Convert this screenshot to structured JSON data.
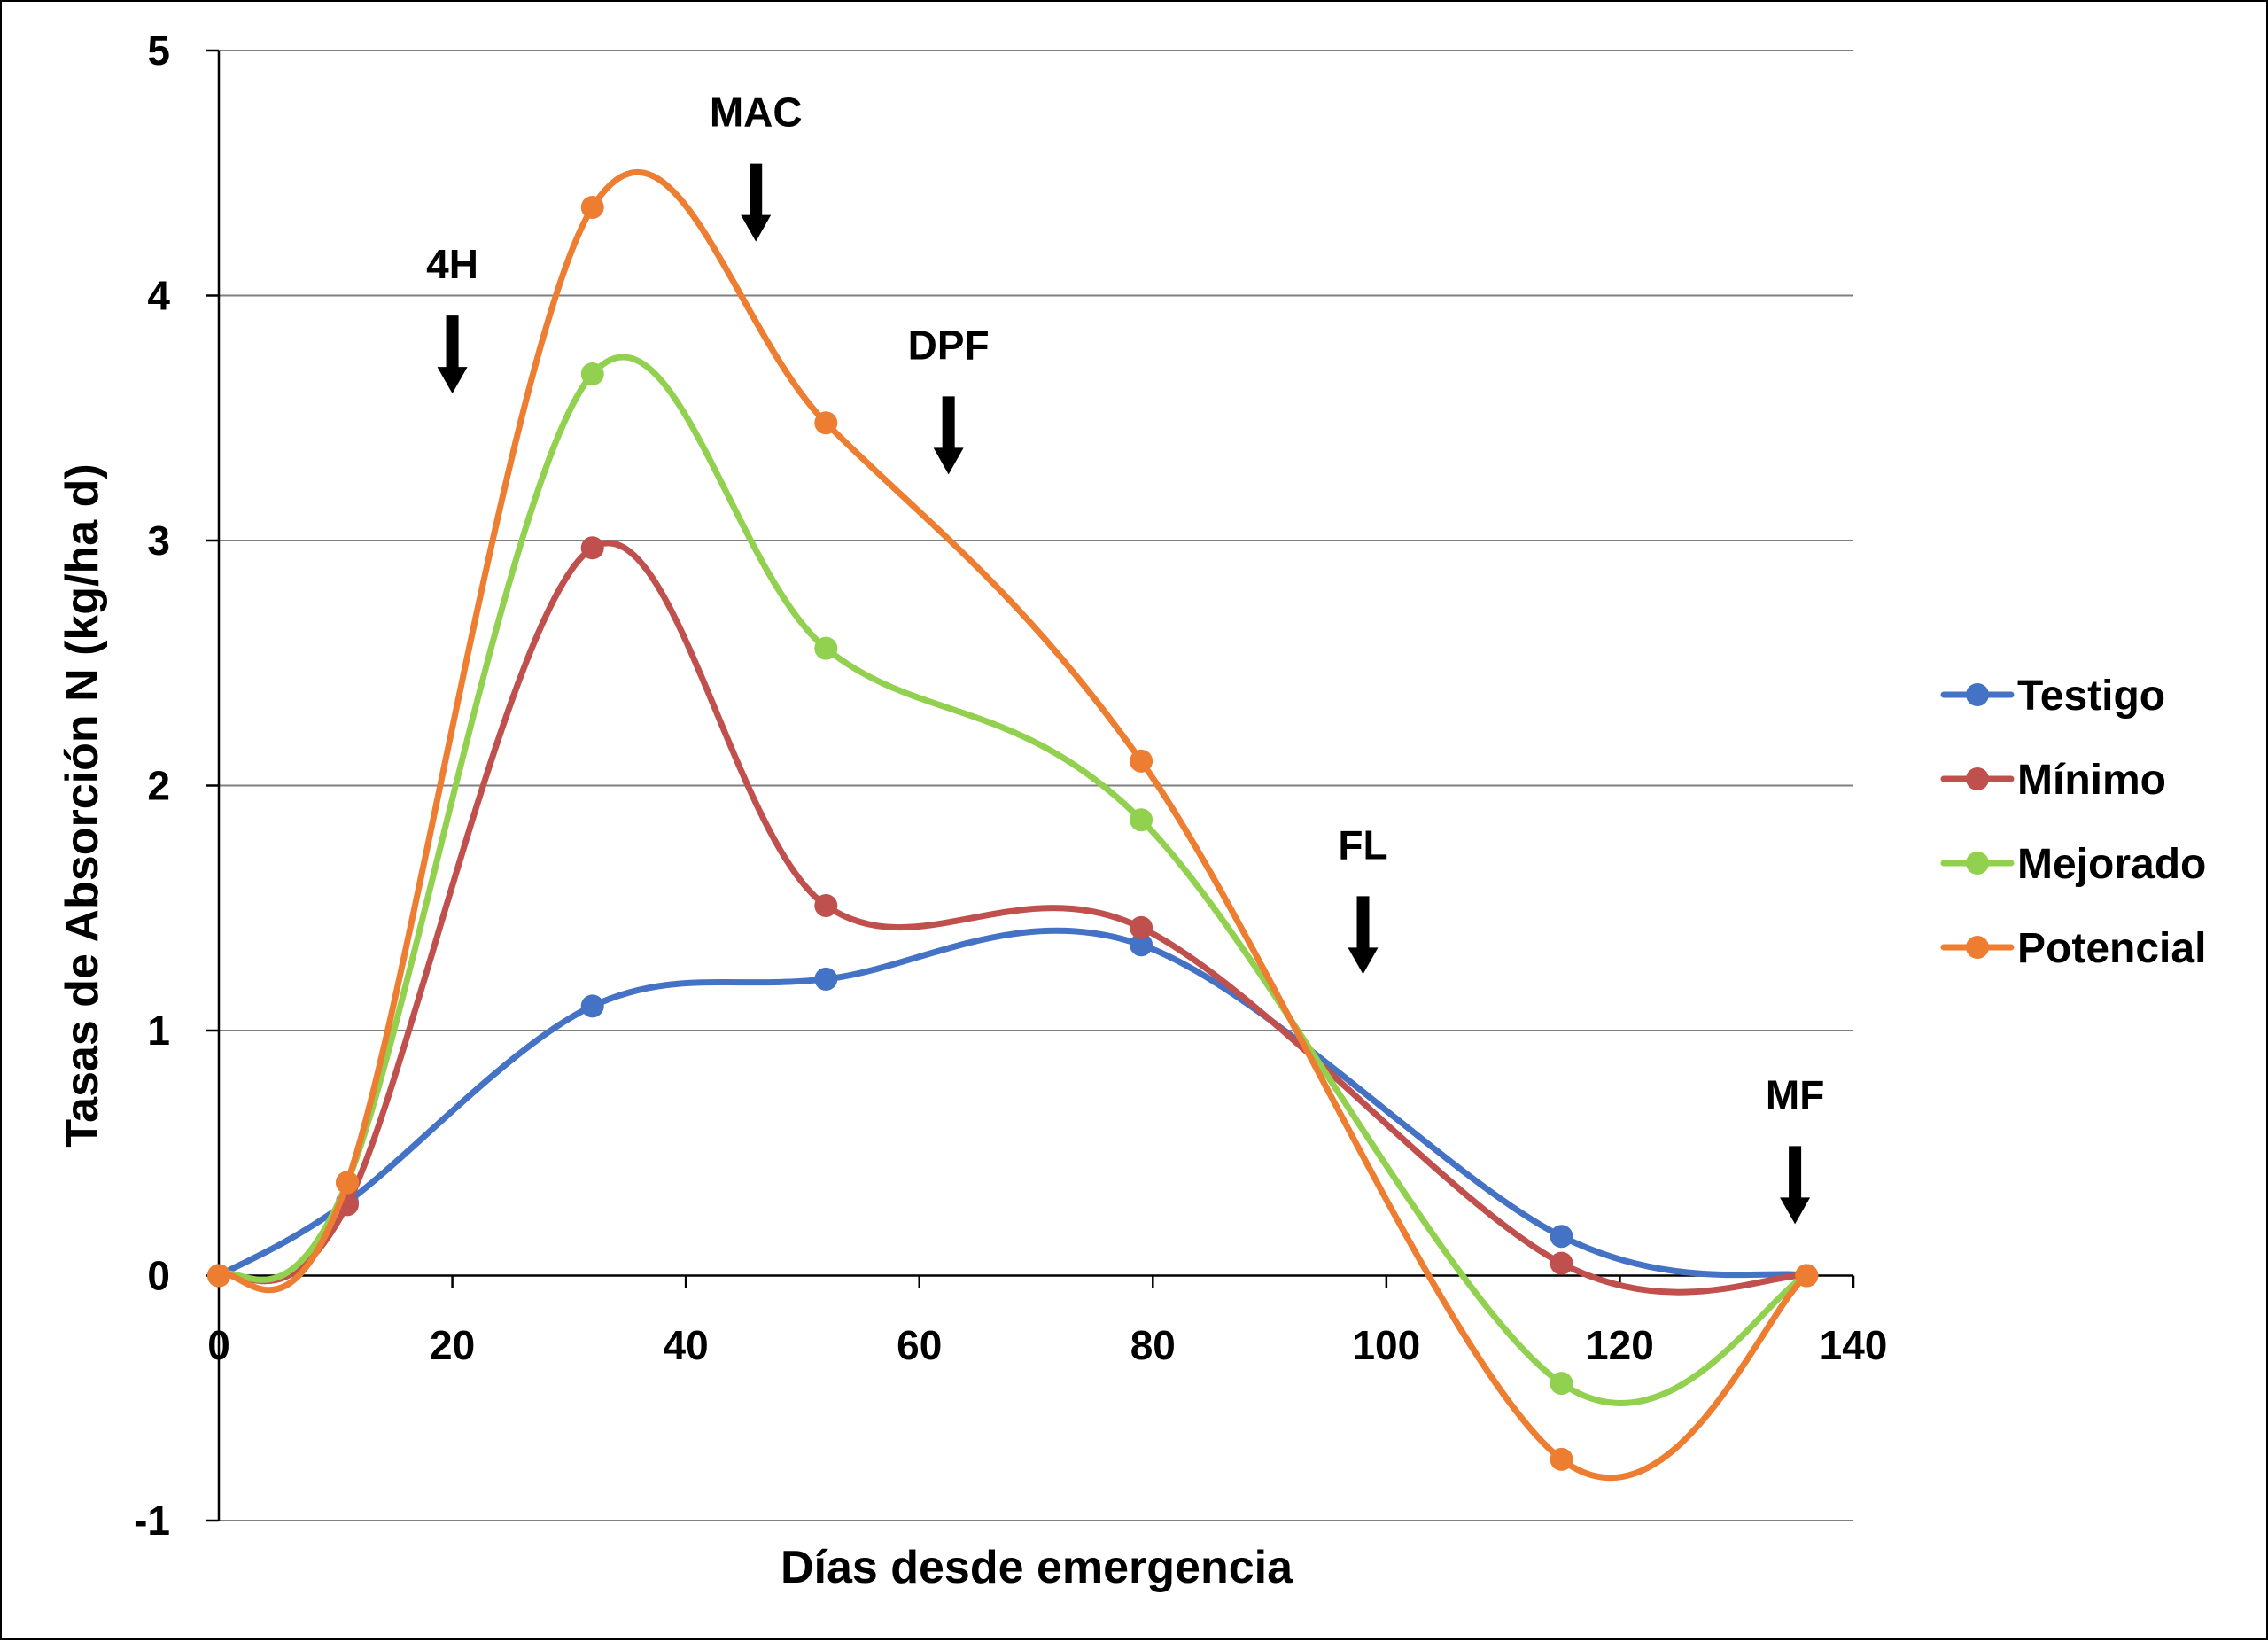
{
  "chart_data": {
    "type": "line",
    "title": "",
    "xlabel": "Días desde emergencia",
    "ylabel": "Tasas de Absorción N (kg/ha d)",
    "xlim": [
      0,
      140
    ],
    "ylim": [
      -1,
      5
    ],
    "x_ticks": [
      0,
      20,
      40,
      60,
      80,
      100,
      120,
      140
    ],
    "y_ticks": [
      -1,
      0,
      1,
      2,
      3,
      4,
      5
    ],
    "x_tick_labels": [
      "0",
      "20",
      "40",
      "60",
      "80",
      "100",
      "120",
      "140"
    ],
    "y_tick_labels": [
      "-1",
      "0",
      "1",
      "2",
      "3",
      "4",
      "5"
    ],
    "grid": "horizontal",
    "legend_position": "right",
    "x": [
      0,
      11,
      32,
      52,
      79,
      115,
      136
    ],
    "series": [
      {
        "name": "Testigo",
        "color": "#4472C4",
        "values": [
          0,
          0.3,
          1.1,
          1.21,
          1.35,
          0.16,
          0
        ]
      },
      {
        "name": "Mínimo",
        "color": "#C0504D",
        "values": [
          0,
          0.29,
          2.97,
          1.51,
          1.42,
          0.05,
          0
        ]
      },
      {
        "name": "Mejorado",
        "color": "#92D050",
        "values": [
          0,
          0.38,
          3.68,
          2.56,
          1.86,
          -0.44,
          0
        ]
      },
      {
        "name": "Potencial",
        "color": "#ED7D31",
        "values": [
          0,
          0.38,
          4.36,
          3.48,
          2.1,
          -0.75,
          0
        ]
      }
    ],
    "annotations": [
      {
        "label": "4H",
        "x": 20,
        "arrow_tip_y": 3.6
      },
      {
        "label": "MAC",
        "x": 46,
        "arrow_tip_y": 4.22
      },
      {
        "label": "DPF",
        "x": 62.5,
        "arrow_tip_y": 3.27
      },
      {
        "label": "FL",
        "x": 98,
        "arrow_tip_y": 1.23
      },
      {
        "label": "MF",
        "x": 135,
        "arrow_tip_y": 0.21
      }
    ]
  }
}
